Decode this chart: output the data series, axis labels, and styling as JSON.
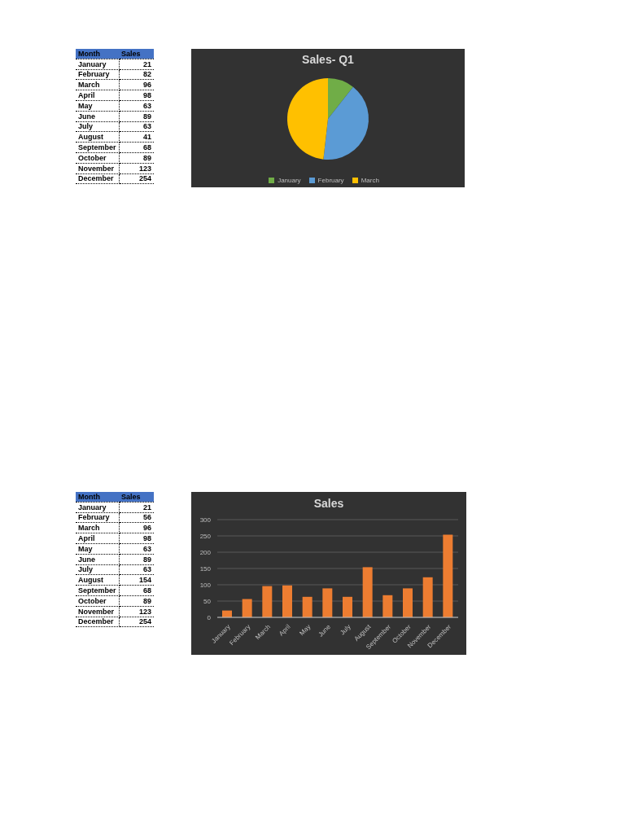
{
  "chart_data": [
    {
      "type": "other",
      "xlabel": "Month",
      "ylabel": "Sales",
      "categories": [
        "January",
        "February",
        "March",
        "April",
        "May",
        "June",
        "July",
        "August",
        "September",
        "October",
        "November",
        "December"
      ],
      "values": [
        21,
        82,
        96,
        98,
        63,
        89,
        63,
        41,
        68,
        89,
        123,
        254
      ],
      "data_labels": true
    },
    {
      "type": "pie",
      "title": "Sales- Q1",
      "categories": [
        "January",
        "February",
        "March"
      ],
      "values": [
        10.6,
        41.2,
        48.2
      ],
      "colors": [
        "#70ad47",
        "#5b9bd5",
        "#ffc000"
      ],
      "legend": "bottom"
    },
    {
      "type": "other",
      "xlabel": "Month",
      "ylabel": "Sales",
      "categories": [
        "January",
        "February",
        "March",
        "April",
        "May",
        "June",
        "July",
        "August",
        "September",
        "October",
        "November",
        "December"
      ],
      "values": [
        21,
        56,
        96,
        98,
        63,
        89,
        63,
        154,
        68,
        89,
        123,
        254
      ],
      "data_labels": true
    },
    {
      "type": "bar",
      "title": "Sales",
      "categories": [
        "January",
        "February",
        "March",
        "April",
        "May",
        "June",
        "July",
        "August",
        "September",
        "October",
        "November",
        "December"
      ],
      "values": [
        21,
        56,
        96,
        98,
        63,
        89,
        63,
        154,
        68,
        89,
        123,
        254
      ],
      "color": "#ed7d31",
      "ylim": [
        0,
        300
      ],
      "yticks": [
        0,
        50,
        100,
        150,
        200,
        250,
        300
      ],
      "grid": "y"
    }
  ]
}
